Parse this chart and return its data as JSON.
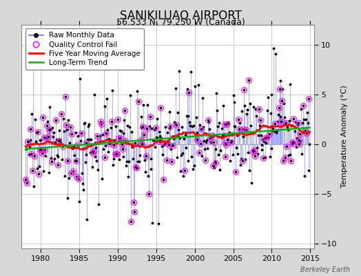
{
  "title": "SANIKILUAQ AIRPORT",
  "subtitle": "56.533 N, 79.250 W (Canada)",
  "ylabel": "Temperature Anomaly (°C)",
  "credit": "Berkeley Earth",
  "xlim": [
    1977.5,
    2015.5
  ],
  "ylim": [
    -10.5,
    12
  ],
  "yticks": [
    -10,
    -5,
    0,
    5,
    10
  ],
  "xticks": [
    1980,
    1985,
    1990,
    1995,
    2000,
    2005,
    2010,
    2015
  ],
  "line_color": "#6666ff",
  "marker_color": "#000000",
  "qc_color": "#ff00ff",
  "moving_avg_color": "#ff0000",
  "trend_color": "#00bb00",
  "plot_bg_color": "#ffffff",
  "fig_bg_color": "#d8d8d8",
  "title_fontsize": 12,
  "subtitle_fontsize": 9,
  "label_fontsize": 8,
  "tick_fontsize": 8
}
